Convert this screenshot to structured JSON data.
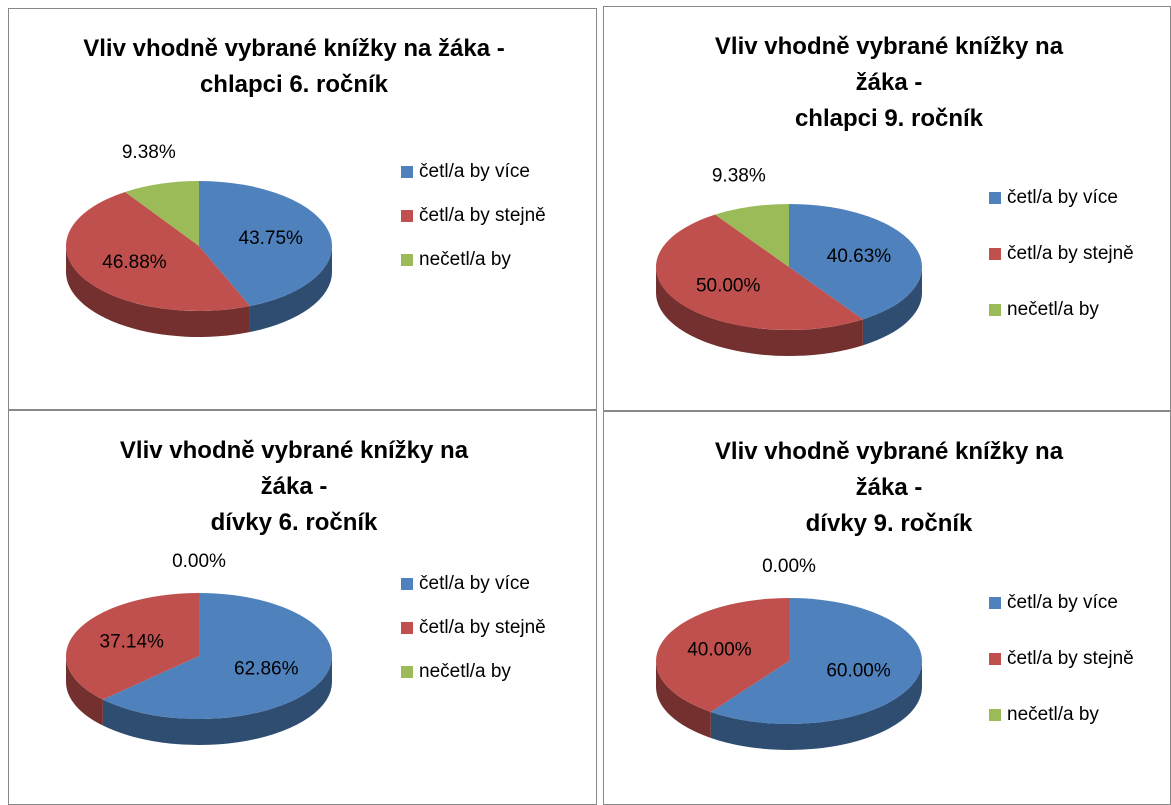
{
  "chart_data": [
    {
      "type": "pie",
      "title": "Vliv vhodně vybrané knížky na žáka -\nchlapci 6. ročník",
      "categories": [
        "četl/a by více",
        "četl/a by stejně",
        "nečetl/a by"
      ],
      "values": [
        43.75,
        46.88,
        9.38
      ],
      "value_labels": [
        "43.75%",
        "46.88%",
        "9.38%"
      ],
      "colors": [
        "#4f81bd",
        "#c0504d",
        "#9bbb59"
      ]
    },
    {
      "type": "pie",
      "title": "Vliv vhodně vybrané knížky na\nžáka -\nchlapci 9. ročník",
      "categories": [
        "četl/a by více",
        "četl/a by stejně",
        "nečetl/a by"
      ],
      "values": [
        40.63,
        50.0,
        9.38
      ],
      "value_labels": [
        "40.63%",
        "50.00%",
        "9.38%"
      ],
      "colors": [
        "#4f81bd",
        "#c0504d",
        "#9bbb59"
      ]
    },
    {
      "type": "pie",
      "title": "Vliv vhodně vybrané knížky na\nžáka -\ndívky 6. ročník",
      "categories": [
        "četl/a by více",
        "četl/a by stejně",
        "nečetl/a by"
      ],
      "values": [
        62.86,
        37.14,
        0.0
      ],
      "value_labels": [
        "62.86%",
        "37.14%",
        "0.00%"
      ],
      "colors": [
        "#4f81bd",
        "#c0504d",
        "#9bbb59"
      ]
    },
    {
      "type": "pie",
      "title": "Vliv vhodně vybrané knížky na\nžáka -\ndívky 9. ročník",
      "categories": [
        "četl/a by více",
        "četl/a by stejně",
        "nečetl/a by"
      ],
      "values": [
        60.0,
        40.0,
        0.0
      ],
      "value_labels": [
        "60.00%",
        "40.00%",
        "0.00%"
      ],
      "colors": [
        "#4f81bd",
        "#c0504d",
        "#9bbb59"
      ]
    }
  ]
}
